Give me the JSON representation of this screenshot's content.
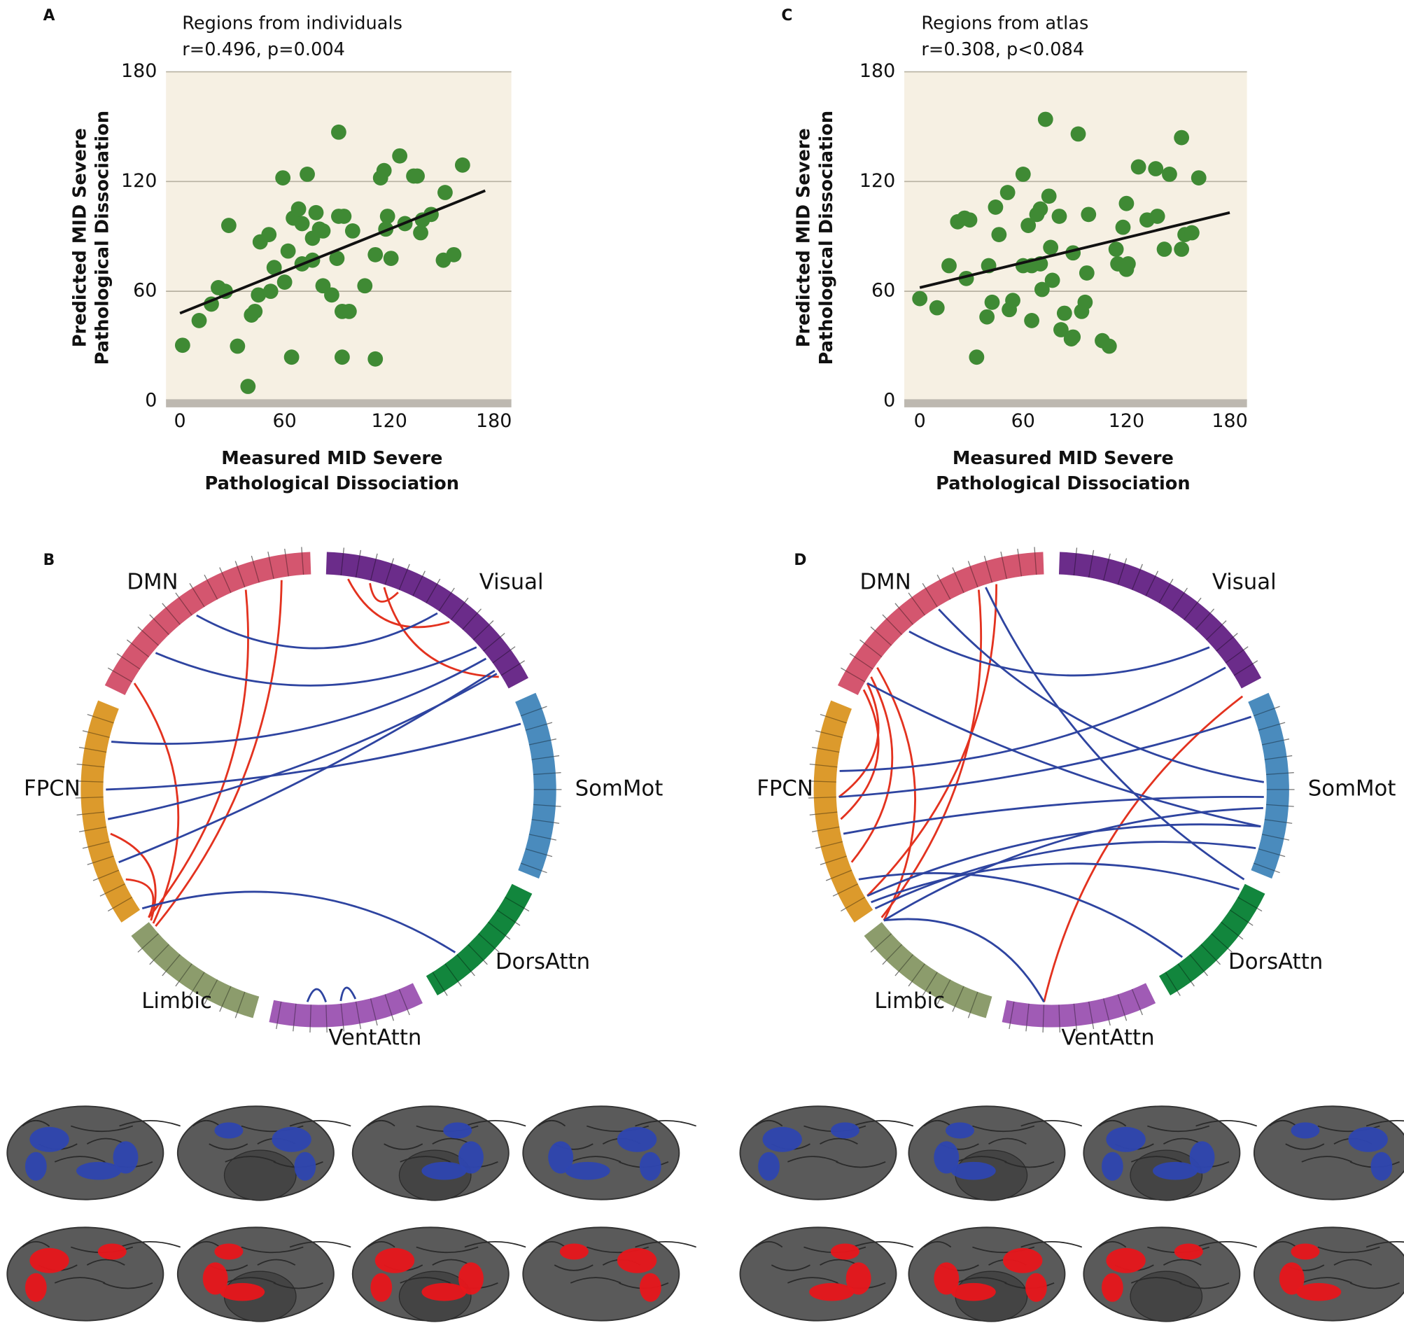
{
  "chart_data": [
    {
      "type": "scatter",
      "panel": "A",
      "title": "Regions from individuals",
      "subtitle": "r=0.496, p=0.004",
      "xlabel": [
        "Measured MID Severe",
        "Pathological Dissociation"
      ],
      "ylabel": [
        "Predicted MID Severe",
        "Pathological Dissociation"
      ],
      "xlim": [
        -8,
        190
      ],
      "ylim": [
        0,
        180
      ],
      "xticks": [
        0,
        60,
        120,
        180
      ],
      "yticks": [
        0,
        60,
        120,
        180
      ],
      "grid": true,
      "color": "#3f8a34",
      "x": [
        1.5,
        11,
        18,
        22,
        26,
        28,
        33,
        39,
        41,
        43,
        45,
        46,
        51,
        52,
        54,
        59,
        60,
        62,
        64,
        65,
        68,
        70,
        70,
        73,
        76,
        76,
        78,
        80,
        82,
        82,
        87,
        91,
        91,
        90,
        93,
        93,
        94,
        97,
        99,
        106,
        112,
        112,
        115,
        117,
        118,
        119,
        121,
        126,
        129,
        134,
        136,
        138,
        139,
        144,
        151,
        152,
        157,
        162
      ],
      "y": [
        30.5,
        44,
        53,
        62,
        60,
        96,
        30,
        8,
        47,
        49,
        58,
        87,
        91,
        60,
        73,
        122,
        65,
        82,
        24,
        100,
        105,
        75,
        97,
        124,
        89,
        77,
        103,
        94,
        93,
        63,
        58,
        101,
        147,
        78,
        24,
        49,
        101,
        49,
        93,
        63,
        23,
        80,
        122,
        126,
        94,
        101,
        78,
        134,
        97,
        123,
        123,
        92,
        99,
        102,
        77,
        114,
        80,
        129
      ],
      "trend": {
        "x": [
          0,
          175
        ],
        "y": [
          48,
          115
        ]
      }
    },
    {
      "type": "scatter",
      "panel": "C",
      "title": "Regions from atlas",
      "subtitle": "r=0.308, p<0.084",
      "xlabel": [
        "Measured MID Severe",
        "Pathological Dissociation"
      ],
      "ylabel": [
        "Predicted MID Severe",
        "Pathological Dissociation"
      ],
      "xlim": [
        -9,
        190
      ],
      "ylim": [
        0,
        180
      ],
      "xticks": [
        0,
        60,
        120,
        180
      ],
      "yticks": [
        0,
        60,
        120,
        180
      ],
      "grid": true,
      "color": "#3f8a34",
      "x": [
        0,
        10,
        17,
        22,
        26,
        27,
        29,
        33,
        39,
        40,
        42,
        44,
        46,
        51,
        52,
        54,
        60,
        60,
        63,
        65,
        65,
        68,
        70,
        70,
        71,
        75,
        76,
        73,
        77,
        81,
        82,
        84,
        88,
        89,
        89,
        92,
        94,
        96,
        97,
        98,
        106,
        110,
        114,
        115,
        118,
        120,
        120,
        121,
        127,
        132,
        137,
        138,
        142,
        145,
        152,
        152,
        154,
        158,
        162
      ],
      "y": [
        56,
        51,
        74,
        98,
        100,
        67,
        99,
        24,
        46,
        74,
        54,
        106,
        91,
        114,
        50,
        55,
        124,
        74,
        96,
        74,
        44,
        102,
        105,
        75,
        61,
        112,
        84,
        154,
        66,
        101,
        39,
        48,
        34,
        35,
        81,
        146,
        49,
        54,
        70,
        102,
        33,
        30,
        83,
        75,
        95,
        72,
        108,
        75,
        128,
        99,
        127,
        101,
        83,
        124,
        83,
        144,
        91,
        92,
        122
      ],
      "trend": {
        "x": [
          0,
          180
        ],
        "y": [
          62,
          103
        ]
      }
    }
  ],
  "chord_diagrams": [
    {
      "panel": "B",
      "networks": [
        {
          "name": "Visual",
          "color": "#6b2c8a"
        },
        {
          "name": "SomMot",
          "color": "#4a8bbd"
        },
        {
          "name": "DorsAttn",
          "color": "#12863d"
        },
        {
          "name": "VentAttn",
          "color": "#a05bb5"
        },
        {
          "name": "Limbic",
          "color": "#8c9c6c"
        },
        {
          "name": "FPCN",
          "color": "#dc9a2c"
        },
        {
          "name": "DMN",
          "color": "#d4566f"
        }
      ]
    },
    {
      "panel": "D",
      "networks": [
        {
          "name": "Visual",
          "color": "#6b2c8a"
        },
        {
          "name": "SomMot",
          "color": "#4a8bbd"
        },
        {
          "name": "DorsAttn",
          "color": "#12863d"
        },
        {
          "name": "VentAttn",
          "color": "#a05bb5"
        },
        {
          "name": "Limbic",
          "color": "#8c9c6c"
        },
        {
          "name": "FPCN",
          "color": "#dc9a2c"
        },
        {
          "name": "DMN",
          "color": "#d4566f"
        }
      ]
    }
  ]
}
